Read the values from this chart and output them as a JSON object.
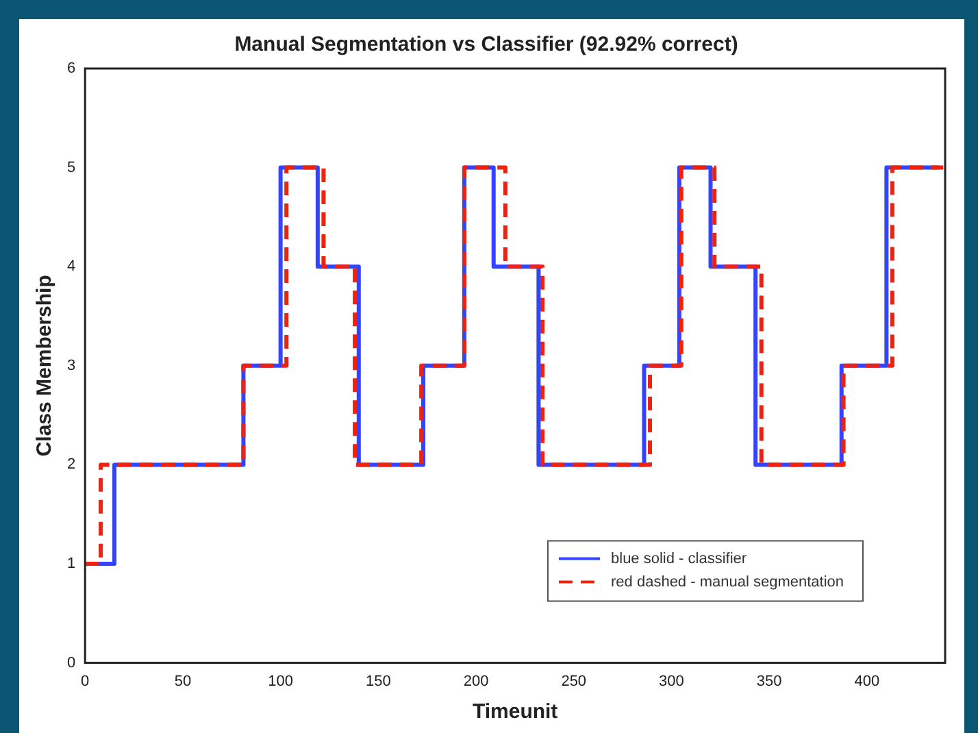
{
  "chart_data": {
    "type": "step",
    "title": "Manual Segmentation vs Classifier (92.92% correct)",
    "xlabel": "Timeunit",
    "ylabel": "Class Membership",
    "xlim": [
      0,
      440
    ],
    "xticks": [
      0,
      50,
      100,
      150,
      200,
      250,
      300,
      350,
      400
    ],
    "ylim": [
      0,
      6
    ],
    "yticks": [
      0,
      1,
      2,
      3,
      4,
      5,
      6
    ],
    "grid": false,
    "legend": "bottom right",
    "series": [
      {
        "name": "blue solid - classifier",
        "color": "#3344ff",
        "line_style": "solid",
        "x": [
          0,
          15,
          81,
          100,
          119,
          140,
          173,
          194,
          209,
          232,
          286,
          304,
          320,
          343,
          387,
          410,
          437
        ],
        "values": [
          1,
          2,
          3,
          5,
          4,
          2,
          3,
          5,
          4,
          2,
          3,
          5,
          4,
          2,
          3,
          5,
          5
        ]
      },
      {
        "name": "red dashed - manual segmentation",
        "color": "#ee2211",
        "line_style": "dashed",
        "x": [
          0,
          8,
          81,
          103,
          122,
          138,
          172,
          194,
          215,
          234,
          289,
          305,
          322,
          346,
          388,
          413,
          439
        ],
        "values": [
          1,
          2,
          3,
          5,
          4,
          2,
          3,
          5,
          4,
          2,
          3,
          5,
          4,
          2,
          3,
          5,
          5
        ]
      }
    ]
  }
}
